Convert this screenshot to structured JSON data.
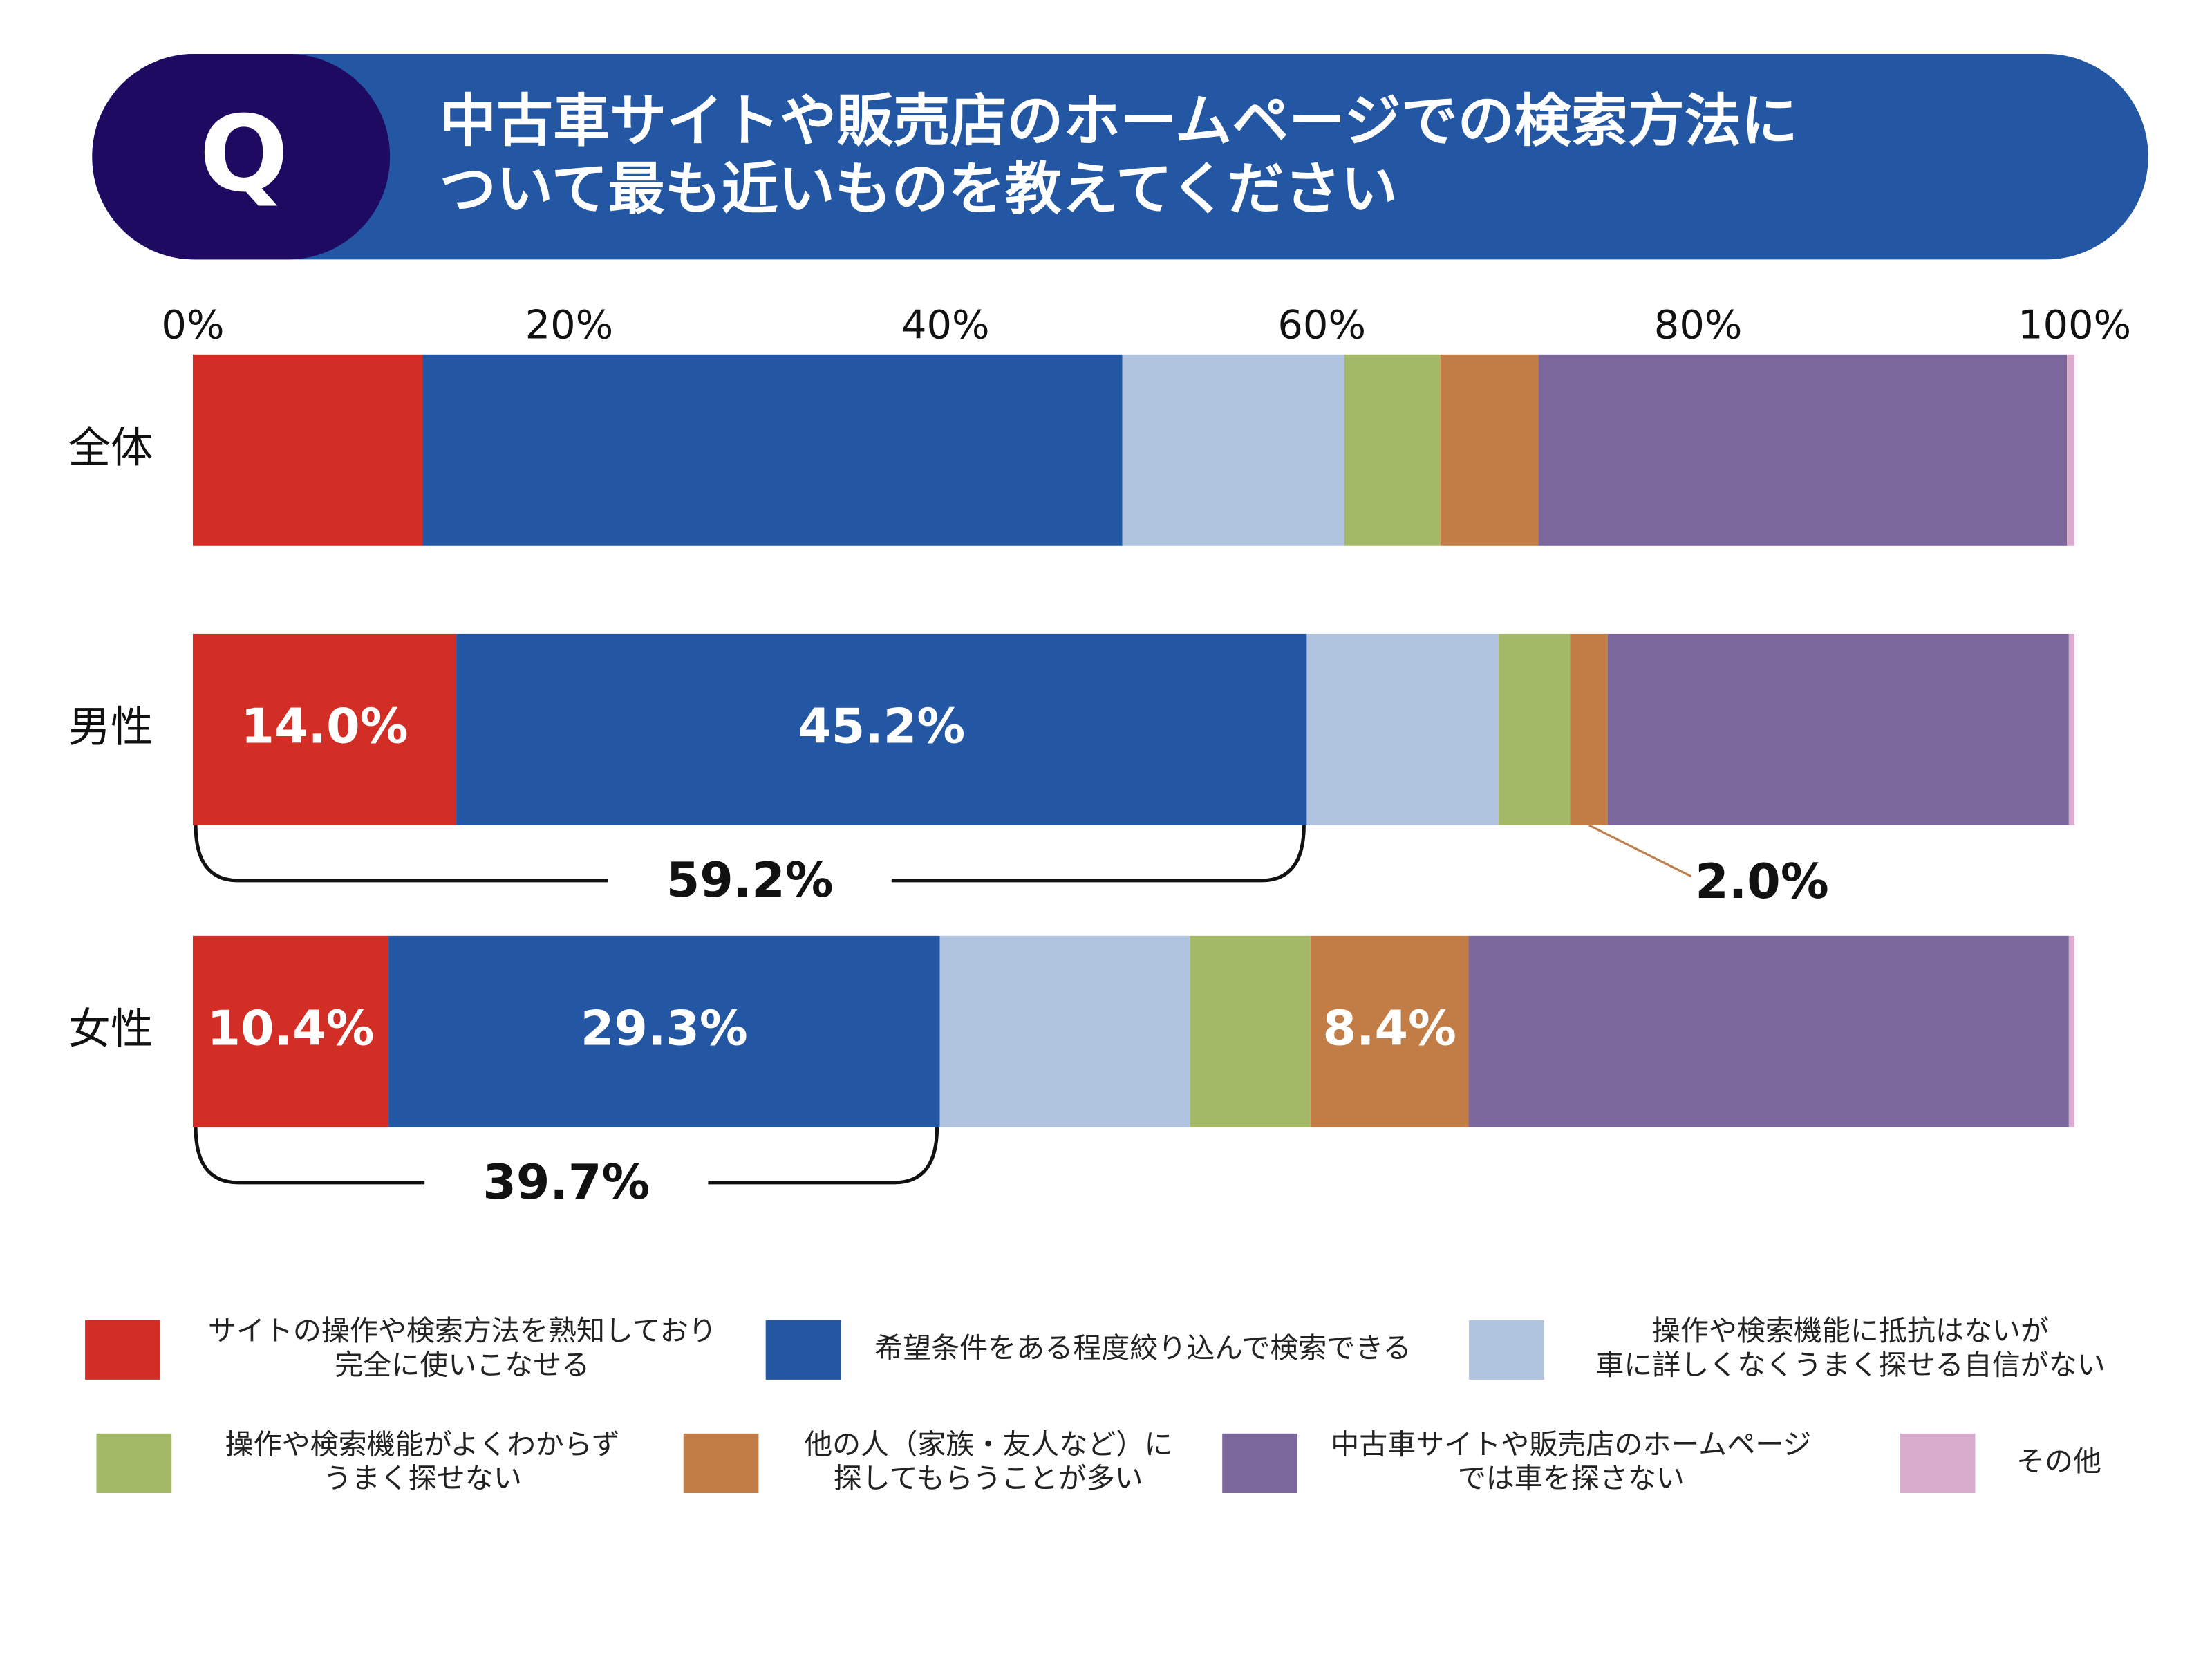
{
  "chart_data": {
    "type": "stacked-bar-horizontal",
    "badge": "Q",
    "title": [
      "中古車サイトや販売店のホームページでの検索方法に",
      "ついて最も近いものを教えてください"
    ],
    "categories": [
      "全体",
      "男性",
      "女性"
    ],
    "xlim": [
      0,
      100
    ],
    "xticks": [
      {
        "value": 0,
        "label": "0%"
      },
      {
        "value": 20,
        "label": "20%"
      },
      {
        "value": 40,
        "label": "40%"
      },
      {
        "value": 60,
        "label": "60%"
      },
      {
        "value": 80,
        "label": "80%"
      },
      {
        "value": 100,
        "label": "100%"
      }
    ],
    "series": [
      {
        "name": "サイトの操作や検索方法を熟知しており\n完全に使いこなせる",
        "color": "#d22e26",
        "values": [
          12.2,
          14.0,
          10.4
        ],
        "value_labels": [
          null,
          "14.0%",
          "10.4%"
        ]
      },
      {
        "name": "希望条件をある程度絞り込んで検索できる",
        "color": "#2357a3",
        "values": [
          37.2,
          45.2,
          29.3
        ],
        "value_labels": [
          null,
          "45.2%",
          "29.3%"
        ]
      },
      {
        "name": "操作や検索機能に抵抗はないが\n車に詳しくなくうまく探せる自信がない",
        "color": "#b0c4df",
        "values": [
          11.8,
          10.2,
          13.3
        ]
      },
      {
        "name": "操作や検索機能がよくわからず\nうまく探せない",
        "color": "#a3b967",
        "values": [
          5.1,
          3.8,
          6.4
        ]
      },
      {
        "name": "他の人（家族・友人など）に\n探してもらうことが多い",
        "color": "#c17d45",
        "values": [
          5.2,
          2.0,
          8.4
        ],
        "value_labels": [
          null,
          "2.0%",
          "8.4%"
        ]
      },
      {
        "name": "中古車サイトや販売店のホームページ\nでは車を探さない",
        "color": "#7b679b",
        "values": [
          28.1,
          24.5,
          31.9
        ]
      },
      {
        "name": "その他",
        "color": "#d9abcd",
        "values": [
          0.4,
          0.3,
          0.3
        ]
      }
    ],
    "brackets": [
      {
        "category": "男性",
        "value": 59.2,
        "label": "59.2%"
      },
      {
        "category": "女性",
        "value": 39.7,
        "label": "39.7%"
      }
    ]
  }
}
